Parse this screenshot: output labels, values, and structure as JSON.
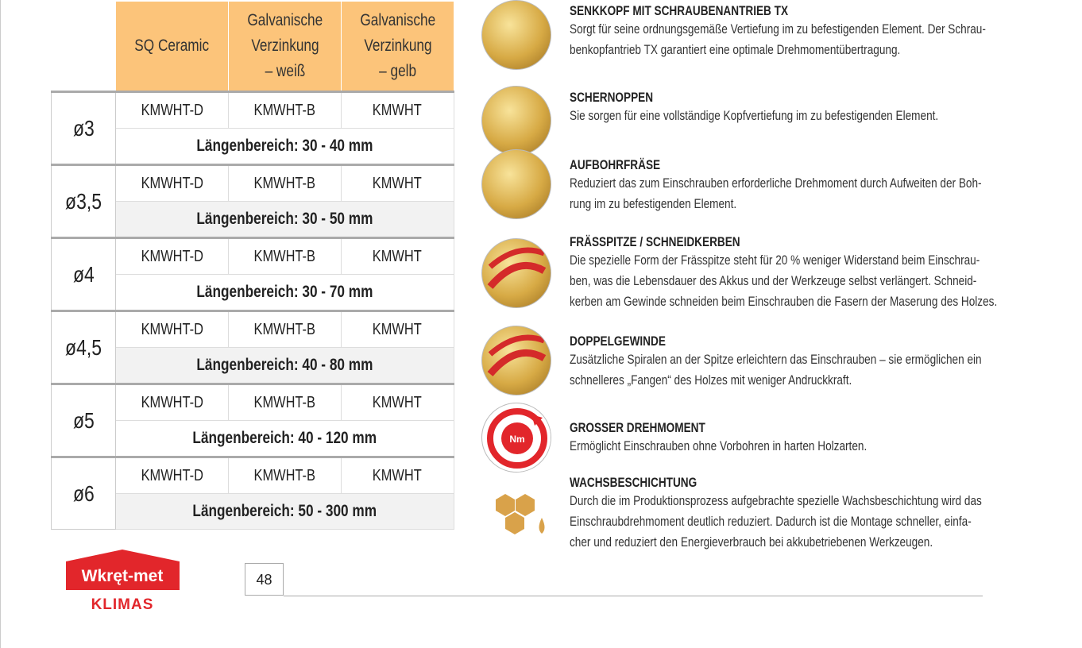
{
  "table": {
    "headers": [
      "SQ Ceramic",
      "Galvanische Verzinkung – weiß",
      "Galvanische Verzinkung – gelb"
    ],
    "header_lines": [
      [
        "SQ Ceramic"
      ],
      [
        "Galvanische",
        "Verzinkung",
        "– weiß"
      ],
      [
        "Galvanische",
        "Verzinkung",
        "– gelb"
      ]
    ],
    "rows": [
      {
        "diameter": "ø3",
        "codes": [
          "KMWHT-D",
          "KMWHT-B",
          "KMWHT"
        ],
        "length": "Längenbereich: 30 - 40 mm"
      },
      {
        "diameter": "ø3,5",
        "codes": [
          "KMWHT-D",
          "KMWHT-B",
          "KMWHT"
        ],
        "length": "Längenbereich: 30 - 50 mm"
      },
      {
        "diameter": "ø4",
        "codes": [
          "KMWHT-D",
          "KMWHT-B",
          "KMWHT"
        ],
        "length": "Längenbereich: 30 - 70 mm"
      },
      {
        "diameter": "ø4,5",
        "codes": [
          "KMWHT-D",
          "KMWHT-B",
          "KMWHT"
        ],
        "length": "Längenbereich: 40 - 80 mm"
      },
      {
        "diameter": "ø5",
        "codes": [
          "KMWHT-D",
          "KMWHT-B",
          "KMWHT"
        ],
        "length": "Längenbereich: 40 - 120 mm"
      },
      {
        "diameter": "ø6",
        "codes": [
          "KMWHT-D",
          "KMWHT-B",
          "KMWHT"
        ],
        "length": "Längenbereich: 50 - 300 mm"
      }
    ],
    "header_color": "#fcc47a"
  },
  "features": [
    {
      "icon": "screw-head-tx-icon",
      "title": "SENKKOPF MIT SCHRAUBENANTRIEB TX",
      "lines": [
        "Sorgt für seine ordnungsgemäße Vertiefung im zu befestigenden Element. Der Schrau-",
        "benkopfantrieb TX garantiert eine optimale Drehmomentübertragung."
      ]
    },
    {
      "icon": "shear-ribs-icon",
      "title": "SCHERNOPPEN",
      "lines": [
        "Sie sorgen für eine vollständige Kopfvertiefung im zu befestigenden Element."
      ]
    },
    {
      "icon": "reamer-icon",
      "title": "AUFBOHRFRÄSE",
      "lines": [
        "Reduziert das zum Einschrauben erforderliche Drehmoment durch Aufweiten der Boh-",
        "rung im zu befestigenden Element."
      ]
    },
    {
      "icon": "cutting-tip-icon",
      "title": "FRÄSSPITZE / SCHNEIDKERBEN",
      "lines": [
        "Die spezielle Form der Frässpitze steht für 20 % weniger Widerstand beim Einschrau-",
        "ben, was die Lebensdauer des Akkus und der Werkzeuge selbst verlängert. Schneid-",
        "kerben am Gewinde schneiden beim Einschrauben die Fasern der Maserung des Holzes."
      ]
    },
    {
      "icon": "double-thread-icon",
      "title": "DOPPELGEWINDE",
      "lines": [
        "Zusätzliche Spiralen an der Spitze erleichtern das Einschrauben – sie ermöglichen ein",
        "schnelleres „Fangen“ des Holzes mit weniger Andruckkraft."
      ]
    },
    {
      "icon": "torque-icon",
      "title": "GROSSER DREHMOMENT",
      "lines": [
        "Ermöglicht Einschrauben ohne Vorbohren in harten Holzarten."
      ],
      "icon_text": "Nm"
    },
    {
      "icon": "wax-coating-icon",
      "title": "WACHSBESCHICHTUNG",
      "lines": [
        "Durch die im Produktionsprozess aufgebrachte spezielle Wachsbeschichtung wird das",
        "Einschraubdrehmoment deutlich reduziert. Dadurch ist die Montage schneller, einfa-",
        "cher und reduziert den Energieverbrauch bei akkubetriebenen Werkzeugen."
      ]
    }
  ],
  "logo": {
    "line1": "Wkręt-met",
    "line2": "KLIMAS",
    "color": "#e2262b"
  },
  "page_number": "48"
}
